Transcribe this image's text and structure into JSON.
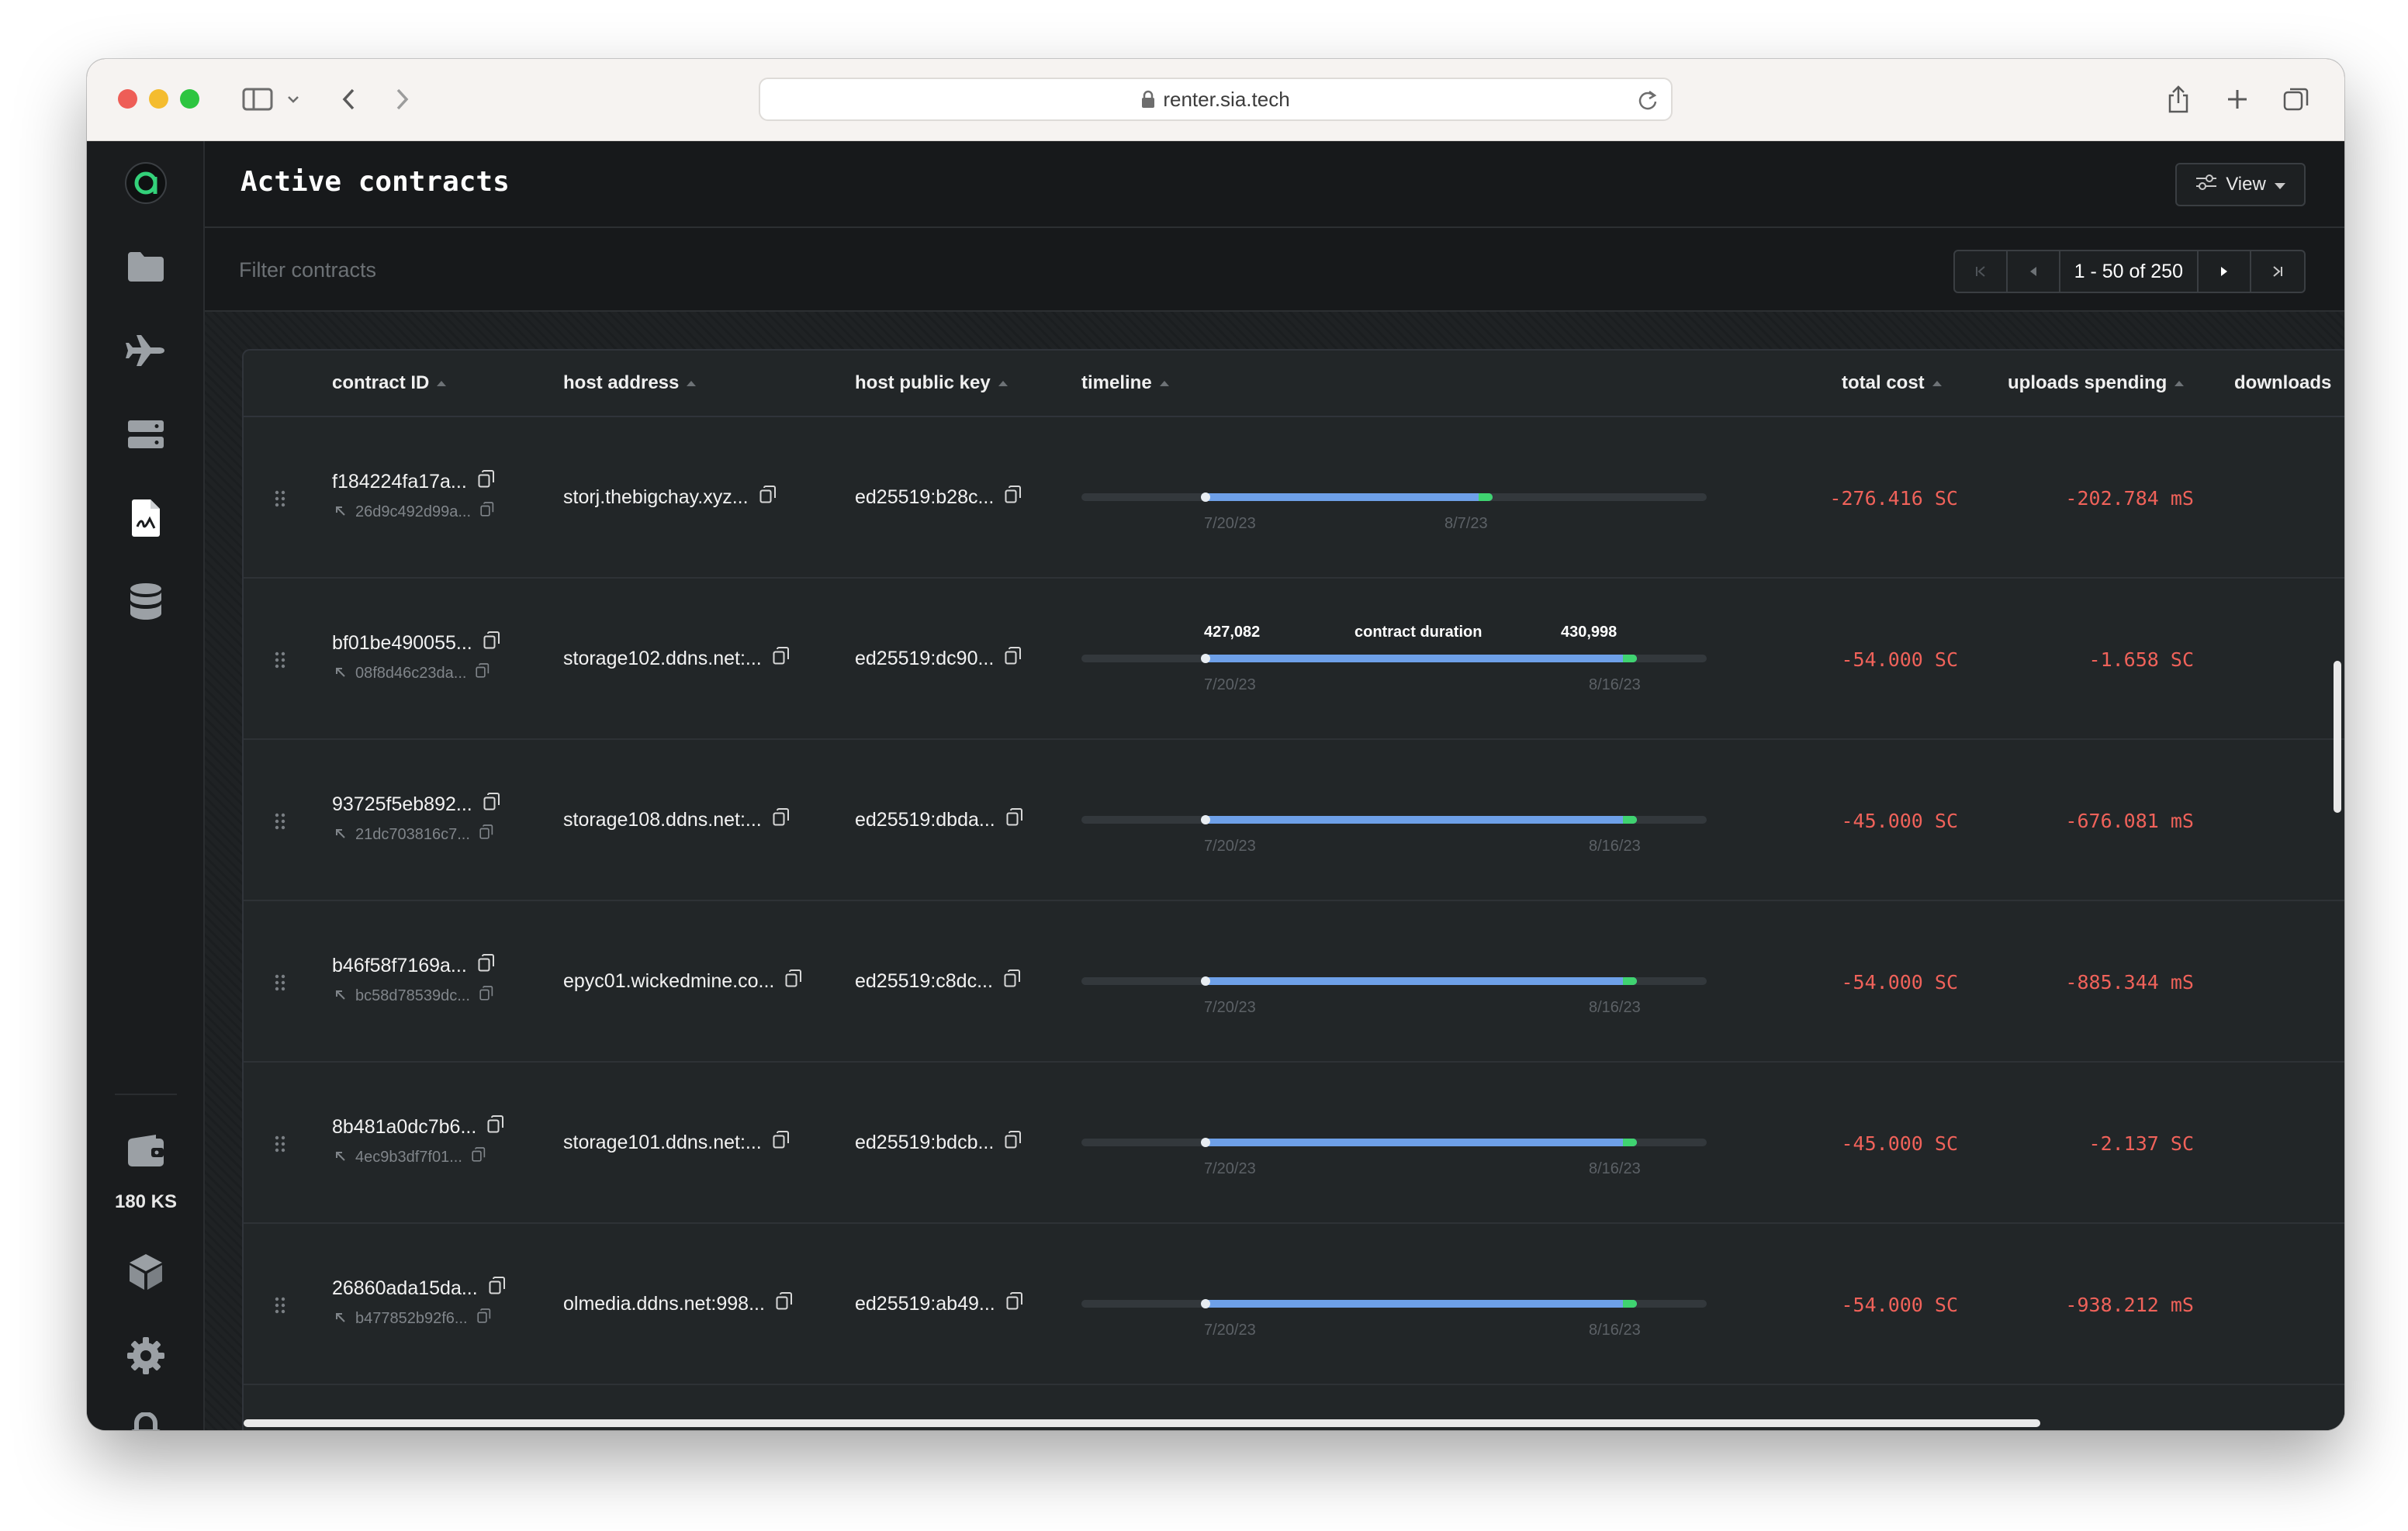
{
  "browser": {
    "url": "renter.sia.tech"
  },
  "sidebar": {
    "balance": "180 KS"
  },
  "header": {
    "title": "Active contracts",
    "view_label": "View"
  },
  "filter": {
    "placeholder": "Filter contracts"
  },
  "pagination": {
    "label": "1 - 50 of 250"
  },
  "table": {
    "columns": {
      "contract_id": "contract ID",
      "host_address": "host address",
      "host_public_key": "host public key",
      "timeline": "timeline",
      "total_cost": "total cost",
      "uploads_spending": "uploads spending",
      "downloads": "downloads"
    },
    "tooltip": {
      "start_height": "427,082",
      "caption": "contract duration",
      "end_height": "430,998"
    },
    "rows": [
      {
        "contract_id": "f184224fa17a...",
        "renewed_from": "26d9c492d99a...",
        "host_address": "storj.thebigchay.xyz...",
        "host_public_key": "ed25519:b28c...",
        "start_date": "7/20/23",
        "end_date": "8/7/23",
        "total_cost": "-276.416 SC",
        "uploads_spending": "-202.784 mS"
      },
      {
        "contract_id": "bf01be490055...",
        "renewed_from": "08f8d46c23da...",
        "host_address": "storage102.ddns.net:...",
        "host_public_key": "ed25519:dc90...",
        "start_date": "7/20/23",
        "end_date": "8/16/23",
        "total_cost": "-54.000 SC",
        "uploads_spending": "-1.658 SC"
      },
      {
        "contract_id": "93725f5eb892...",
        "renewed_from": "21dc703816c7...",
        "host_address": "storage108.ddns.net:...",
        "host_public_key": "ed25519:dbda...",
        "start_date": "7/20/23",
        "end_date": "8/16/23",
        "total_cost": "-45.000 SC",
        "uploads_spending": "-676.081 mS"
      },
      {
        "contract_id": "b46f58f7169a...",
        "renewed_from": "bc58d78539dc...",
        "host_address": "epyc01.wickedmine.co...",
        "host_public_key": "ed25519:c8dc...",
        "start_date": "7/20/23",
        "end_date": "8/16/23",
        "total_cost": "-54.000 SC",
        "uploads_spending": "-885.344 mS"
      },
      {
        "contract_id": "8b481a0dc7b6...",
        "renewed_from": "4ec9b3df7f01...",
        "host_address": "storage101.ddns.net:...",
        "host_public_key": "ed25519:bdcb...",
        "start_date": "7/20/23",
        "end_date": "8/16/23",
        "total_cost": "-45.000 SC",
        "uploads_spending": "-2.137 SC"
      },
      {
        "contract_id": "26860ada15da...",
        "renewed_from": "b477852b92f6...",
        "host_address": "olmedia.ddns.net:998...",
        "host_public_key": "ed25519:ab49...",
        "start_date": "7/20/23",
        "end_date": "8/16/23",
        "total_cost": "-54.000 SC",
        "uploads_spending": "-938.212 mS"
      }
    ]
  }
}
